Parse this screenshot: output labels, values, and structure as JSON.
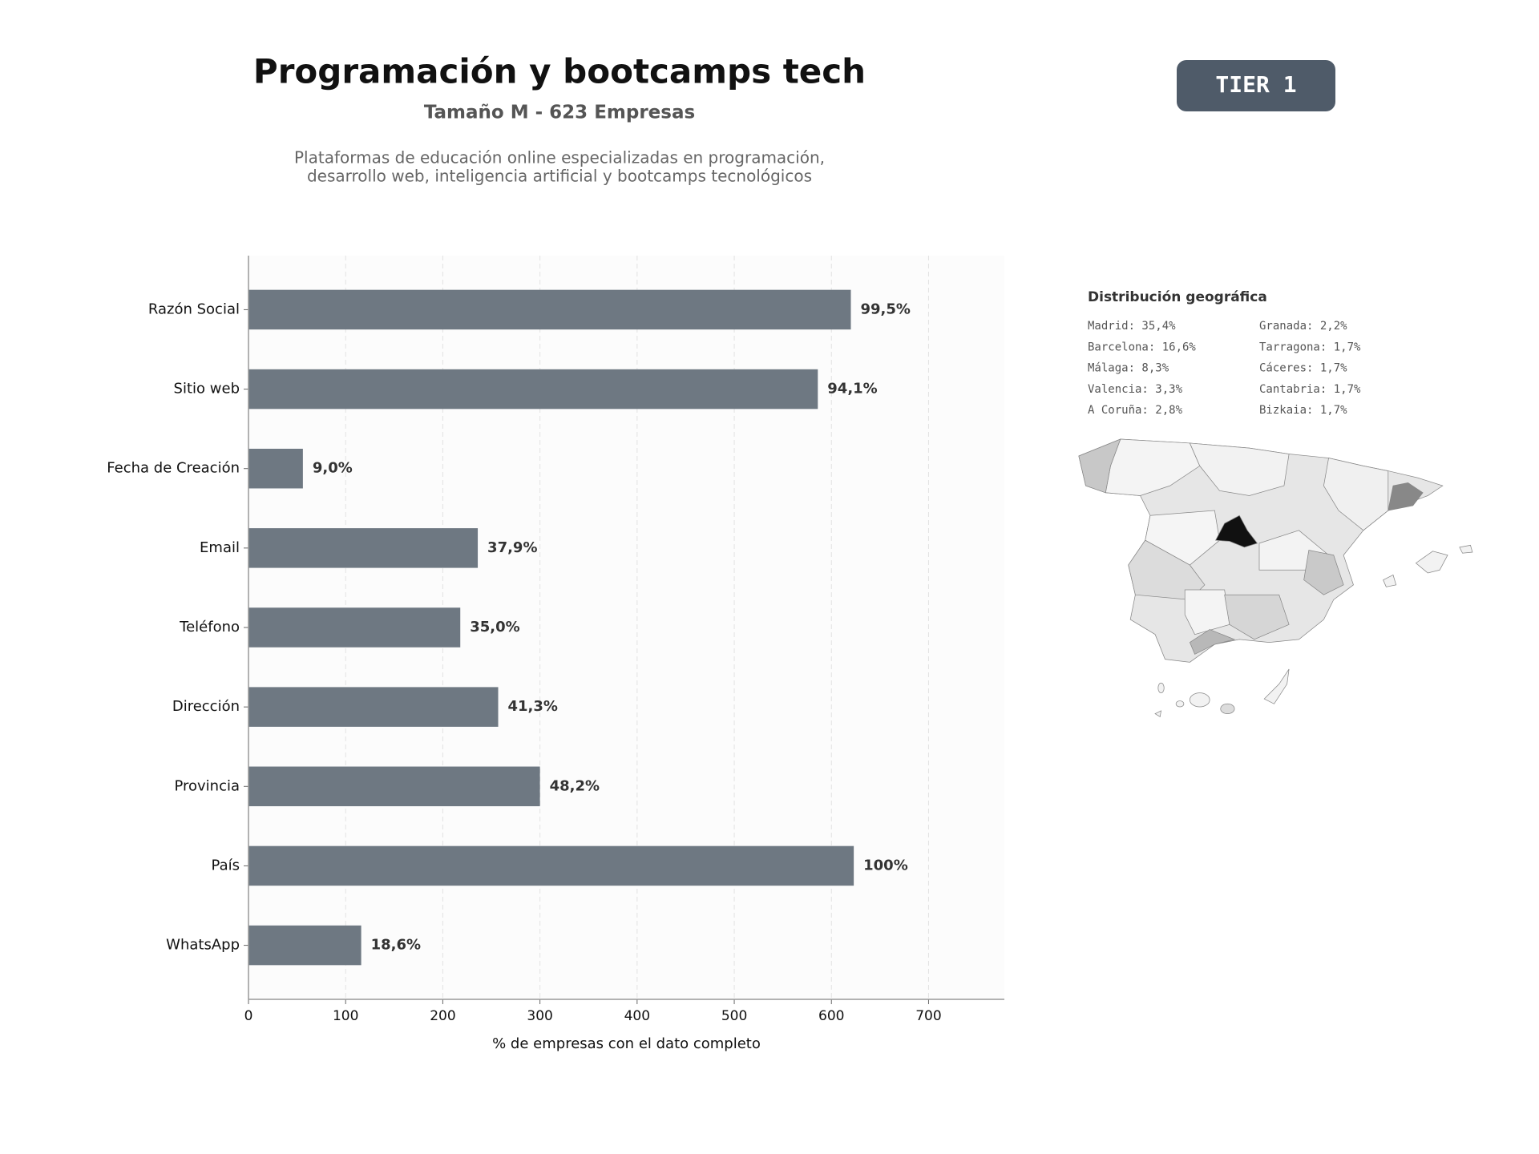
{
  "chart_data": {
    "type": "bar",
    "orientation": "horizontal",
    "title": "Programación y bootcamps tech",
    "subtitle": "Tamaño M - 623 Empresas",
    "description": [
      "Plataformas de educación online especializadas en programación,",
      "desarrollo web, inteligencia artificial y bootcamps tecnológicos"
    ],
    "badge": "TIER 1",
    "categories": [
      "Razón Social",
      "Sitio web",
      "Fecha de Creación",
      "Email",
      "Teléfono",
      "Dirección",
      "Provincia",
      "País",
      "WhatsApp"
    ],
    "values": [
      620,
      586,
      56,
      236,
      218,
      257,
      300,
      623,
      116
    ],
    "value_labels": [
      "99,5%",
      "94,1%",
      "9,0%",
      "37,9%",
      "35,0%",
      "41,3%",
      "48,2%",
      "100%",
      "18,6%"
    ],
    "color": "#6e7882",
    "xlim": [
      0,
      778
    ],
    "xticks": [
      0,
      100,
      200,
      300,
      400,
      500,
      600,
      700
    ],
    "xlabel": "% de empresas con el dato completo",
    "grid": true
  },
  "geo_panel": {
    "title": "Distribución geográfica",
    "items": [
      "Madrid: 35,4%",
      "Barcelona: 16,6%",
      "Málaga: 8,3%",
      "Valencia: 3,3%",
      "A Coruña: 2,8%",
      "Granada: 2,2%",
      "Tarragona: 1,7%",
      "Cáceres: 1,7%",
      "Cantabria: 1,7%",
      "Bizkaia: 1,7%"
    ]
  }
}
